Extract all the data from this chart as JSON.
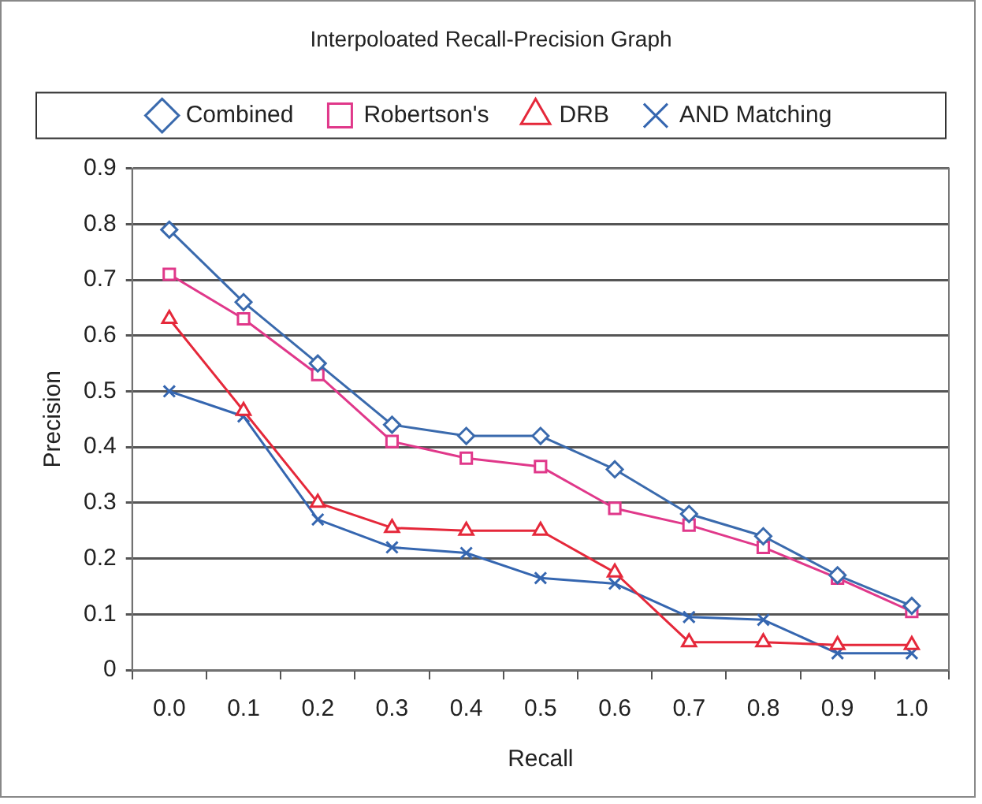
{
  "chart_data": {
    "type": "line",
    "title": "Interpoloated Recall-Precision Graph",
    "xlabel": "Recall",
    "ylabel": "Precision",
    "categories": [
      "0.0",
      "0.1",
      "0.2",
      "0.3",
      "0.4",
      "0.5",
      "0.6",
      "0.7",
      "0.8",
      "0.9",
      "1.0"
    ],
    "series": [
      {
        "name": "Combined",
        "color": "#3a6aad",
        "marker": "diamond",
        "values": [
          0.79,
          0.66,
          0.55,
          0.44,
          0.42,
          0.42,
          0.36,
          0.28,
          0.24,
          0.17,
          0.115
        ]
      },
      {
        "name": "Robertson's",
        "color": "#e0388a",
        "marker": "square",
        "values": [
          0.71,
          0.63,
          0.53,
          0.41,
          0.38,
          0.365,
          0.29,
          0.26,
          0.22,
          0.165,
          0.105
        ]
      },
      {
        "name": "DRB",
        "color": "#e5283a",
        "marker": "triangle",
        "values": [
          0.63,
          0.465,
          0.3,
          0.255,
          0.25,
          0.25,
          0.175,
          0.05,
          0.05,
          0.045,
          0.045
        ]
      },
      {
        "name": "AND Matching",
        "color": "#3566b0",
        "marker": "cross",
        "values": [
          0.5,
          0.455,
          0.27,
          0.22,
          0.21,
          0.165,
          0.155,
          0.095,
          0.09,
          0.03,
          0.03
        ]
      }
    ],
    "ylim": [
      0,
      0.9
    ],
    "yticks": [
      0,
      0.1,
      0.2,
      0.3,
      0.4,
      0.5,
      0.6,
      0.7,
      0.8,
      0.9
    ],
    "grid": "y",
    "legend": "top",
    "line_style": "solid"
  }
}
